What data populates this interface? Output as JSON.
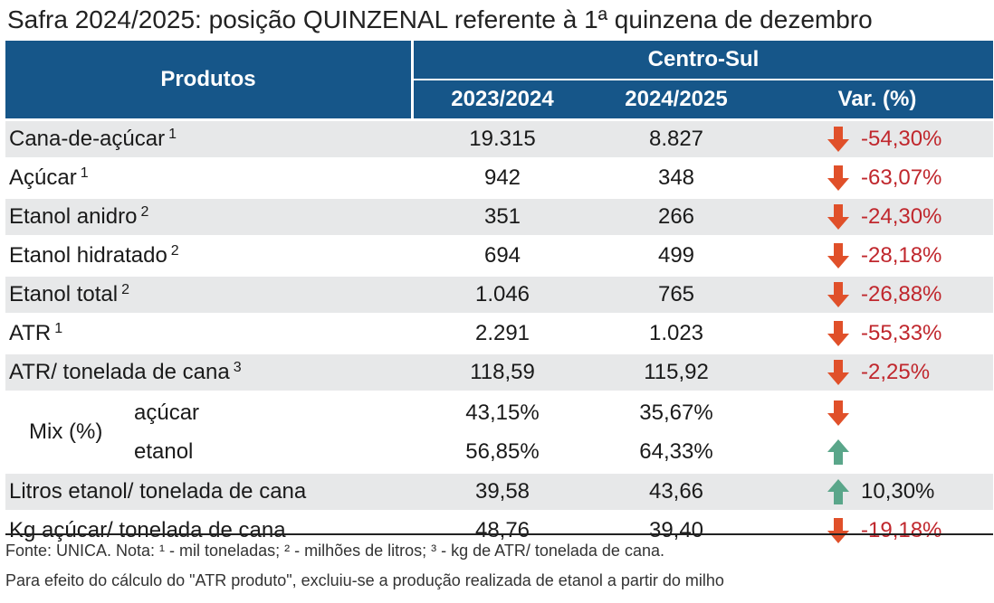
{
  "title": "Safra 2024/2025: posição QUINZENAL referente à 1ª quinzena de dezembro",
  "header": {
    "products": "Produtos",
    "region": "Centro-Sul",
    "col_2023": "2023/2024",
    "col_2024": "2024/2025",
    "col_var": "Var. (%)"
  },
  "rows": [
    {
      "label": "Cana-de-açúcar",
      "note": "1",
      "v2023": "19.315",
      "v2024": "8.827",
      "var": "-54,30%",
      "trend": "down"
    },
    {
      "label": "Açúcar",
      "note": "1",
      "v2023": "942",
      "v2024": "348",
      "var": "-63,07%",
      "trend": "down"
    },
    {
      "label": "Etanol anidro",
      "note": "2",
      "v2023": "351",
      "v2024": "266",
      "var": "-24,30%",
      "trend": "down"
    },
    {
      "label": "Etanol hidratado",
      "note": "2",
      "v2023": "694",
      "v2024": "499",
      "var": "-28,18%",
      "trend": "down"
    },
    {
      "label": "Etanol total",
      "note": "2",
      "v2023": "1.046",
      "v2024": "765",
      "var": "-26,88%",
      "trend": "down"
    },
    {
      "label": "ATR",
      "note": "1",
      "v2023": "2.291",
      "v2024": "1.023",
      "var": "-55,33%",
      "trend": "down"
    },
    {
      "label": "ATR/ tonelada de cana",
      "note": "3",
      "v2023": "118,59",
      "v2024": "115,92",
      "var": "-2,25%",
      "trend": "down"
    }
  ],
  "mix": {
    "label": "Mix (%)",
    "acucar": {
      "label": "açúcar",
      "v2023": "43,15%",
      "v2024": "35,67%",
      "trend": "down"
    },
    "etanol": {
      "label": "etanol",
      "v2023": "56,85%",
      "v2024": "64,33%",
      "trend": "up"
    }
  },
  "rows_after": [
    {
      "label": "Litros etanol/ tonelada de cana",
      "v2023": "39,58",
      "v2024": "43,66",
      "var": "10,30%",
      "trend": "up"
    },
    {
      "label": "Kg açúcar/ tonelada de cana",
      "v2023": "48,76",
      "v2024": "39,40",
      "var": "-19,18%",
      "trend": "down"
    }
  ],
  "footer": {
    "line1": "Fonte: UNICA. Nota: ¹ - mil toneladas; ² - milhões de litros; ³ - kg de ATR/ tonelada de cana.",
    "line2": "Para efeito do cálculo do \"ATR produto\", excluiu-se a produção realizada de etanol a partir do milho"
  },
  "colors": {
    "header_bg": "#165689",
    "row_alt_bg": "#e7e8e9",
    "negative": "#c0272d",
    "arrow_down": "#e0502a",
    "arrow_up": "#5aa68a"
  }
}
